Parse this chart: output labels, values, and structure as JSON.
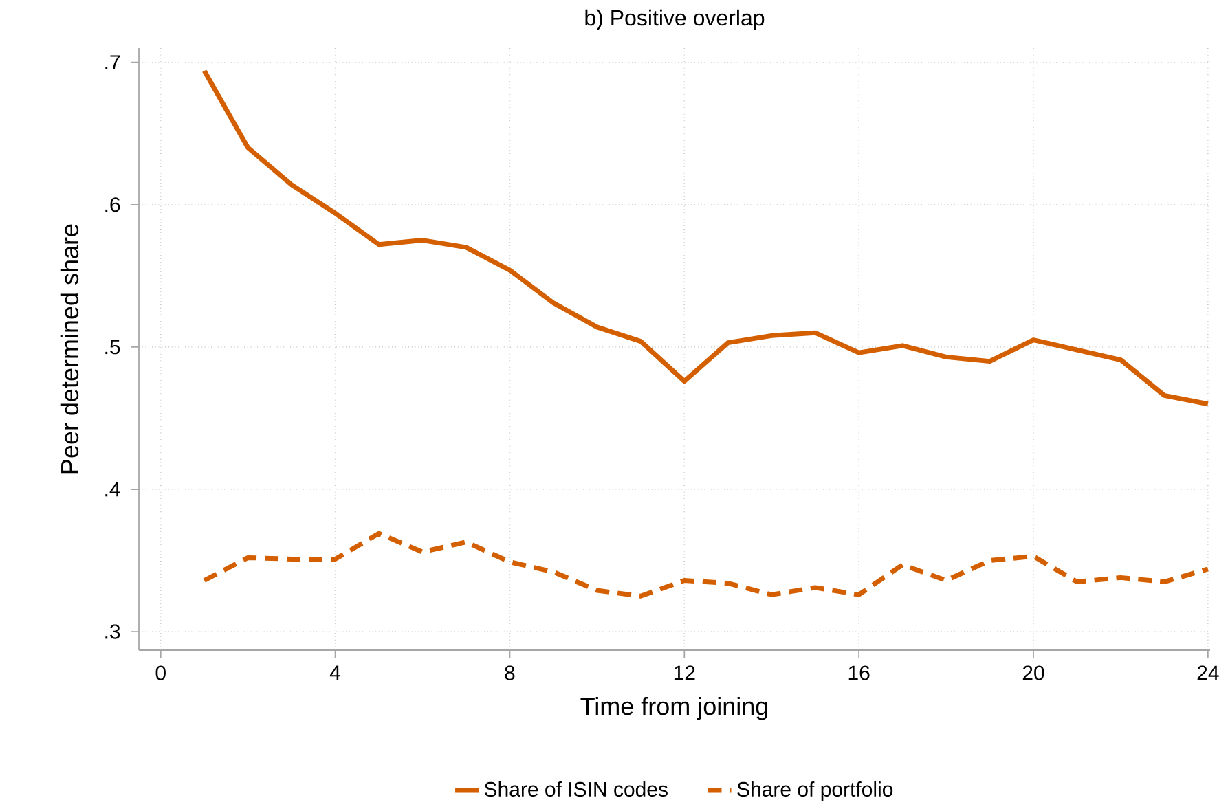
{
  "chart_data": {
    "type": "line",
    "title": "b) Positive overlap",
    "xlabel": "Time from joining",
    "ylabel": "Peer determined share",
    "x": [
      1,
      2,
      3,
      4,
      5,
      6,
      7,
      8,
      9,
      10,
      11,
      12,
      13,
      14,
      15,
      16,
      17,
      18,
      19,
      20,
      21,
      22,
      23,
      24
    ],
    "series": [
      {
        "name": "Share of ISIN codes",
        "color": "#d45f00",
        "line_style": "solid",
        "values": [
          0.694,
          0.64,
          0.614,
          0.594,
          0.572,
          0.575,
          0.57,
          0.554,
          0.531,
          0.514,
          0.504,
          0.476,
          0.503,
          0.508,
          0.51,
          0.496,
          0.501,
          0.493,
          0.49,
          0.505,
          0.498,
          0.491,
          0.466,
          0.46
        ]
      },
      {
        "name": "Share of portfolio",
        "color": "#d45f00",
        "line_style": "dashed",
        "values": [
          0.336,
          0.352,
          0.351,
          0.351,
          0.369,
          0.356,
          0.363,
          0.349,
          0.342,
          0.329,
          0.325,
          0.336,
          0.334,
          0.326,
          0.331,
          0.326,
          0.347,
          0.336,
          0.35,
          0.353,
          0.335,
          0.338,
          0.335,
          0.344
        ]
      }
    ],
    "xlim": [
      -0.5,
      24.05
    ],
    "ylim": [
      0.287,
      0.71
    ],
    "xticks": [
      0,
      4,
      8,
      12,
      16,
      20,
      24
    ],
    "yticks": [
      {
        "value": 0.3,
        "label": ".3"
      },
      {
        "value": 0.4,
        "label": ".4"
      },
      {
        "value": 0.5,
        "label": ".5"
      },
      {
        "value": 0.6,
        "label": ".6"
      },
      {
        "value": 0.7,
        "label": ".7"
      }
    ],
    "grid": true,
    "legend": "bottom"
  }
}
